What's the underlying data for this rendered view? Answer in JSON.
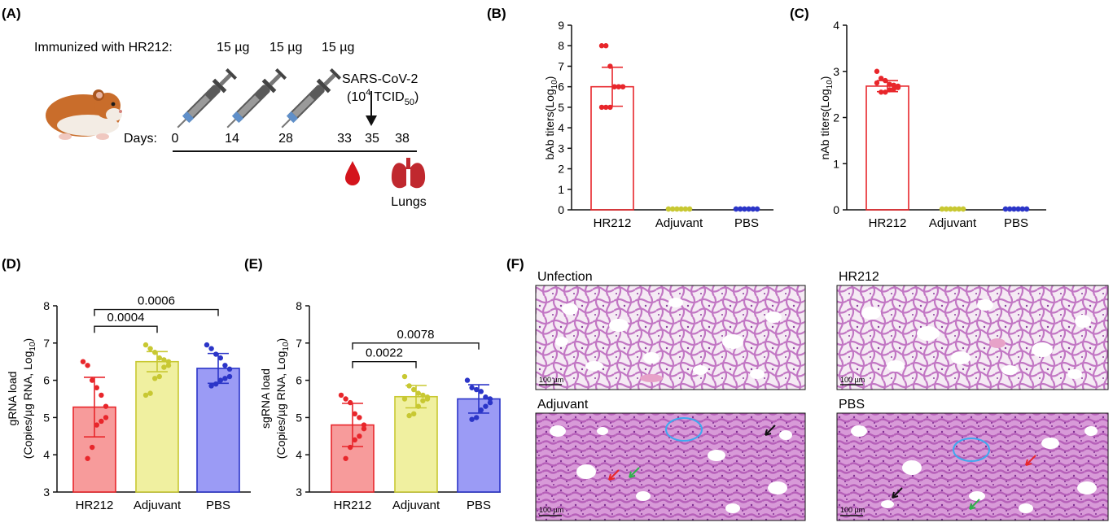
{
  "panel_labels": {
    "A": "(A)",
    "B": "(B)",
    "C": "(C)",
    "D": "(D)",
    "E": "(E)",
    "F": "(F)"
  },
  "panel_a": {
    "immunized_prefix": "Immunized with HR212:",
    "doses": [
      "15 µg",
      "15 µg",
      "15 µg"
    ],
    "challenge_name": "SARS-CoV-2",
    "challenge_dose_open": "(10",
    "challenge_dose_exp": "4",
    "challenge_dose_unit": " TCID",
    "challenge_dose_sub": "50",
    "challenge_dose_close": ")",
    "days_label": "Days:",
    "days": [
      "0",
      "14",
      "28",
      "33",
      "35",
      "38"
    ],
    "lungs_label": "Lungs",
    "colors": {
      "blood": "#d4141c",
      "lungs": "#c0282e",
      "hamster": "#c96d2b"
    },
    "icons": [
      "hamster-icon",
      "syringe-icon",
      "arrow-down-icon",
      "blood-drop-icon",
      "lungs-icon"
    ]
  },
  "panel_f": {
    "titles": [
      "Unfection",
      "HR212",
      "Adjuvant",
      "PBS"
    ],
    "scale_bar": "100 µm",
    "colors": {
      "tissue": "#c680c8",
      "background": "#f3e6f2",
      "circle": "#3fa9ef",
      "arrow_red": "#e8262b",
      "arrow_green": "#2fb24a",
      "arrow_black": "#111111"
    }
  },
  "chart_data": [
    {
      "id": "B",
      "type": "bar",
      "categories": [
        "HR212",
        "Adjuvant",
        "PBS"
      ],
      "ylabel_main": "bAb titers(Log",
      "ylabel_sub": "10",
      "ylabel_close": ")",
      "ylim": [
        0,
        9
      ],
      "yticks": [
        "0",
        "1",
        "2",
        "3",
        "4",
        "5",
        "6",
        "7",
        "8",
        "9"
      ],
      "values": [
        6.0,
        0,
        0
      ],
      "sd": [
        0.95,
        0,
        0
      ],
      "points": [
        [
          8.0,
          8.0,
          7.0,
          6.0,
          6.0,
          6.0,
          6.0,
          6.0,
          6.0,
          5.0,
          5.0,
          5.0
        ],
        [
          0,
          0,
          0,
          0,
          0,
          0,
          0,
          0,
          0,
          0,
          0,
          0
        ],
        [
          0,
          0,
          0,
          0,
          0,
          0,
          0,
          0,
          0,
          0,
          0,
          0
        ]
      ],
      "colors": {
        "bar_edge": [
          "#e8262b",
          "#c8c832",
          "#2b35c8"
        ],
        "bar_fill": [
          "none",
          "none",
          "none"
        ],
        "points": [
          "#e8262b",
          "#c8c832",
          "#2b35c8"
        ]
      }
    },
    {
      "id": "C",
      "type": "bar",
      "categories": [
        "HR212",
        "Adjuvant",
        "PBS"
      ],
      "ylabel_main": "nAb titers(Log",
      "ylabel_sub": "10",
      "ylabel_close": ")",
      "ylim": [
        0,
        4
      ],
      "yticks": [
        "0",
        "1",
        "2",
        "3",
        "4"
      ],
      "values": [
        2.68,
        0,
        0
      ],
      "sd": [
        0.12,
        0,
        0
      ],
      "points": [
        [
          3.0,
          2.85,
          2.8,
          2.72,
          2.7,
          2.68,
          2.65,
          2.62,
          2.6,
          2.55,
          2.55,
          2.75
        ],
        [
          0,
          0,
          0,
          0,
          0,
          0,
          0,
          0,
          0,
          0,
          0,
          0
        ],
        [
          0,
          0,
          0,
          0,
          0,
          0,
          0,
          0,
          0,
          0,
          0,
          0
        ]
      ],
      "colors": {
        "bar_edge": [
          "#e8262b",
          "#c8c832",
          "#2b35c8"
        ],
        "bar_fill": [
          "none",
          "none",
          "none"
        ],
        "points": [
          "#e8262b",
          "#c8c832",
          "#2b35c8"
        ]
      }
    },
    {
      "id": "D",
      "type": "bar",
      "categories": [
        "HR212",
        "Adjuvant",
        "PBS"
      ],
      "ylabel_main": "gRNA load",
      "ylabel2_main": "(Copies/µg RNA, Log",
      "ylabel2_sub": "10",
      "ylabel2_close": ")",
      "ylim": [
        3,
        8
      ],
      "yticks": [
        "3",
        "4",
        "5",
        "6",
        "7",
        "8"
      ],
      "values": [
        5.28,
        6.5,
        6.32
      ],
      "sd": [
        0.8,
        0.27,
        0.4
      ],
      "points": [
        [
          6.5,
          6.4,
          6.0,
          5.8,
          5.6,
          5.3,
          5.0,
          4.9,
          4.8,
          4.2,
          3.9
        ],
        [
          6.95,
          6.85,
          6.75,
          6.6,
          6.55,
          6.5,
          6.4,
          6.35,
          6.1,
          6.05,
          5.65,
          5.6
        ],
        [
          6.95,
          6.85,
          6.7,
          6.6,
          6.4,
          6.3,
          6.1,
          6.05,
          6.0,
          5.9,
          5.85
        ]
      ],
      "comparisons": [
        {
          "from": 0,
          "to": 1,
          "label": "0.0004",
          "y": 7.45
        },
        {
          "from": 0,
          "to": 2,
          "label": "0.0006",
          "y": 7.9
        }
      ],
      "colors": {
        "bar_edge": [
          "#e8262b",
          "#c8c832",
          "#2b35c8"
        ],
        "bar_fill": [
          "#f79b9b",
          "#f0f0a0",
          "#9b9bf5"
        ],
        "points": [
          "#e8262b",
          "#c8c832",
          "#2b35c8"
        ]
      }
    },
    {
      "id": "E",
      "type": "bar",
      "categories": [
        "HR212",
        "Adjuvant",
        "PBS"
      ],
      "ylabel_main": "sgRNA load",
      "ylabel2_main": "(Copies/µg RNA, Log",
      "ylabel2_sub": "10",
      "ylabel2_close": ")",
      "ylim": [
        3,
        8
      ],
      "yticks": [
        "3",
        "4",
        "5",
        "6",
        "7",
        "8"
      ],
      "values": [
        4.8,
        5.56,
        5.5
      ],
      "sd": [
        0.58,
        0.3,
        0.38
      ],
      "points": [
        [
          5.6,
          5.5,
          5.4,
          5.1,
          5.0,
          4.8,
          4.7,
          4.5,
          4.4,
          4.2,
          3.9
        ],
        [
          6.1,
          5.85,
          5.75,
          5.65,
          5.6,
          5.55,
          5.5,
          5.45,
          5.3,
          5.1,
          5.05,
          5.5
        ],
        [
          6.0,
          5.8,
          5.75,
          5.7,
          5.55,
          5.5,
          5.4,
          5.3,
          5.2,
          5.0,
          4.95
        ]
      ],
      "comparisons": [
        {
          "from": 0,
          "to": 1,
          "label": "0.0022",
          "y": 6.5
        },
        {
          "from": 0,
          "to": 2,
          "label": "0.0078",
          "y": 7.0
        }
      ],
      "colors": {
        "bar_edge": [
          "#e8262b",
          "#c8c832",
          "#2b35c8"
        ],
        "bar_fill": [
          "#f79b9b",
          "#f0f0a0",
          "#9b9bf5"
        ],
        "points": [
          "#e8262b",
          "#c8c832",
          "#2b35c8"
        ]
      }
    }
  ]
}
